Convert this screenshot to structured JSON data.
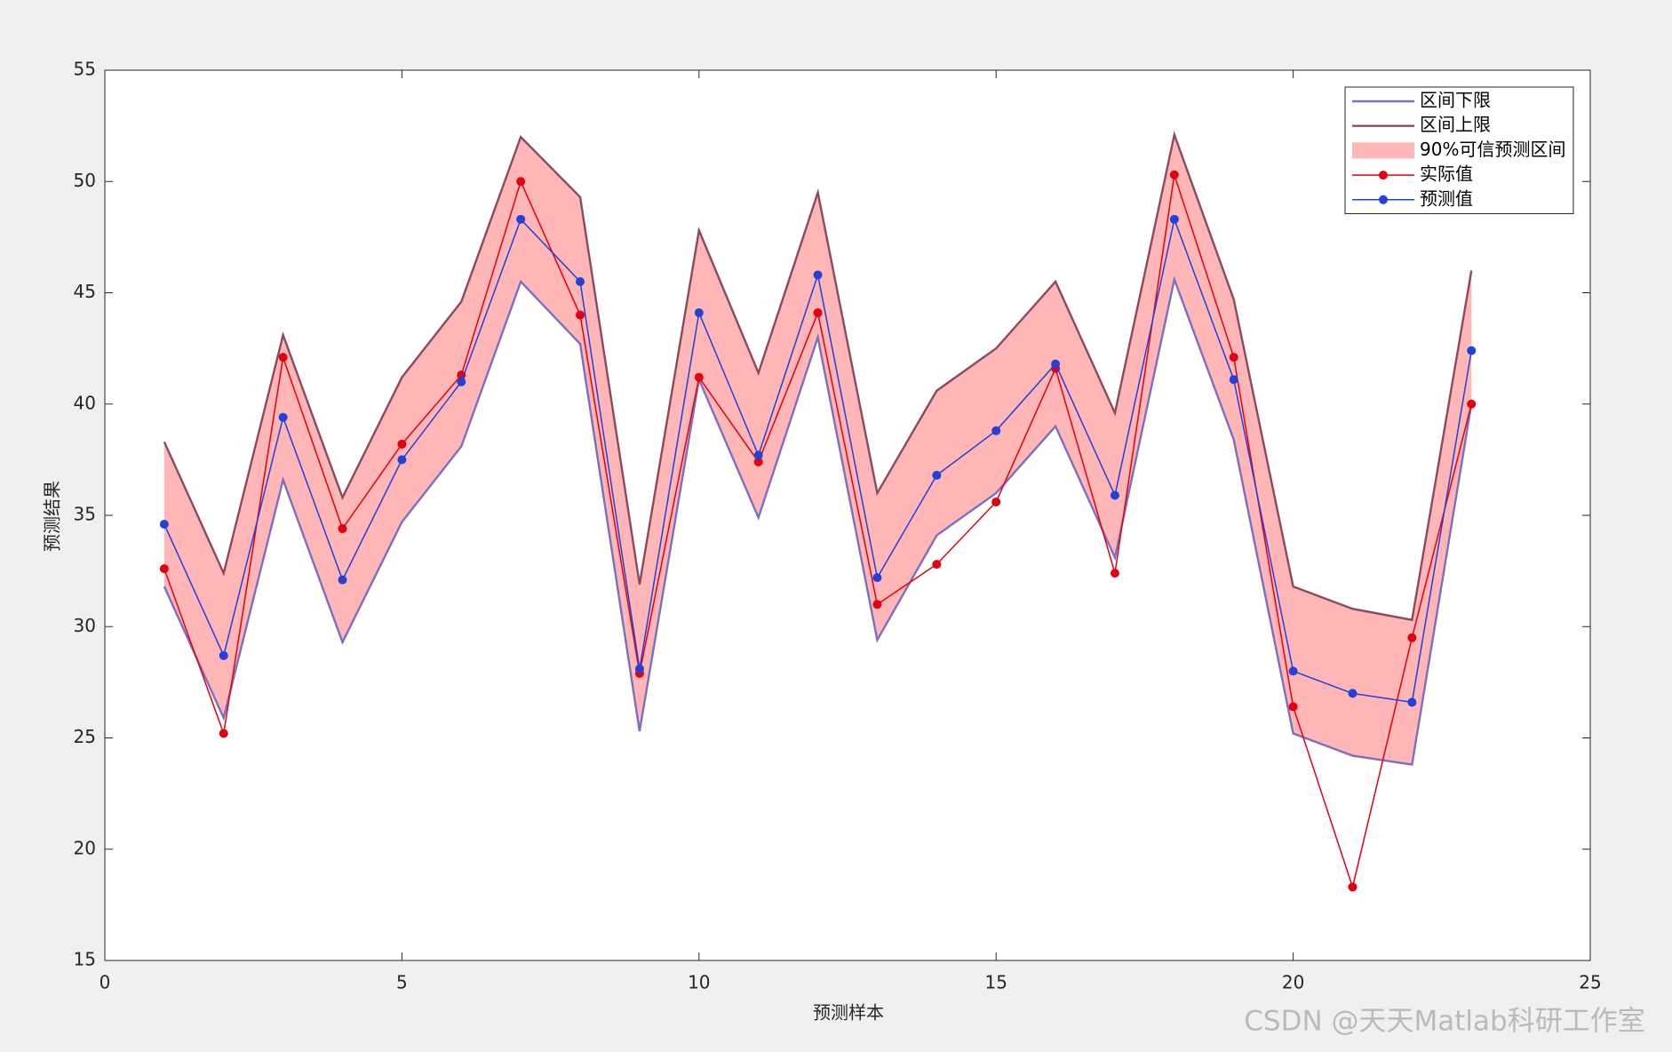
{
  "chart_data": {
    "type": "line",
    "x": [
      1,
      2,
      3,
      4,
      5,
      6,
      7,
      8,
      9,
      10,
      11,
      12,
      13,
      14,
      15,
      16,
      17,
      18,
      19,
      20,
      21,
      22,
      23
    ],
    "xlim": [
      0,
      25
    ],
    "xticks": [
      0,
      5,
      10,
      15,
      20,
      25
    ],
    "ylim": [
      15,
      55
    ],
    "yticks": [
      15,
      20,
      25,
      30,
      35,
      40,
      45,
      50,
      55
    ],
    "xlabel": "预测样本",
    "ylabel": "预测结果",
    "series": [
      {
        "name": "区间下限",
        "color": "#7a6fc4",
        "values": [
          31.8,
          25.9,
          36.6,
          29.3,
          34.7,
          38.1,
          45.5,
          42.7,
          25.3,
          41.1,
          34.9,
          43.0,
          29.4,
          34.1,
          36.0,
          39.0,
          33.1,
          45.6,
          38.4,
          25.2,
          24.2,
          23.8,
          40.0
        ]
      },
      {
        "name": "区间上限",
        "color": "#8a4a60",
        "values": [
          38.3,
          32.4,
          43.1,
          35.8,
          41.2,
          44.6,
          52.0,
          49.3,
          31.9,
          47.8,
          41.4,
          49.5,
          36.0,
          40.6,
          42.5,
          45.5,
          39.6,
          52.1,
          44.7,
          31.8,
          30.8,
          30.3,
          46.0
        ]
      },
      {
        "name": "90%可信预测区间",
        "color": "#ffb6b6",
        "fill_between": [
          0,
          1
        ]
      },
      {
        "name": "实际值",
        "color": "#e3000f",
        "marker": true,
        "values": [
          32.6,
          25.2,
          42.1,
          34.4,
          38.2,
          41.3,
          50.0,
          44.0,
          27.9,
          41.2,
          37.4,
          44.1,
          31.0,
          32.8,
          35.6,
          41.6,
          32.4,
          50.3,
          42.1,
          26.4,
          18.3,
          29.5,
          40.0
        ]
      },
      {
        "name": "预测值",
        "color": "#2340d8",
        "marker": true,
        "values": [
          34.6,
          28.7,
          39.4,
          32.1,
          37.5,
          41.0,
          48.3,
          45.5,
          28.1,
          44.1,
          37.7,
          45.8,
          32.2,
          36.8,
          38.8,
          41.8,
          35.9,
          48.3,
          41.1,
          28.0,
          27.0,
          26.6,
          42.4
        ]
      }
    ],
    "legend": "upper right",
    "watermark": "CSDN @天天Matlab科研工作室"
  }
}
